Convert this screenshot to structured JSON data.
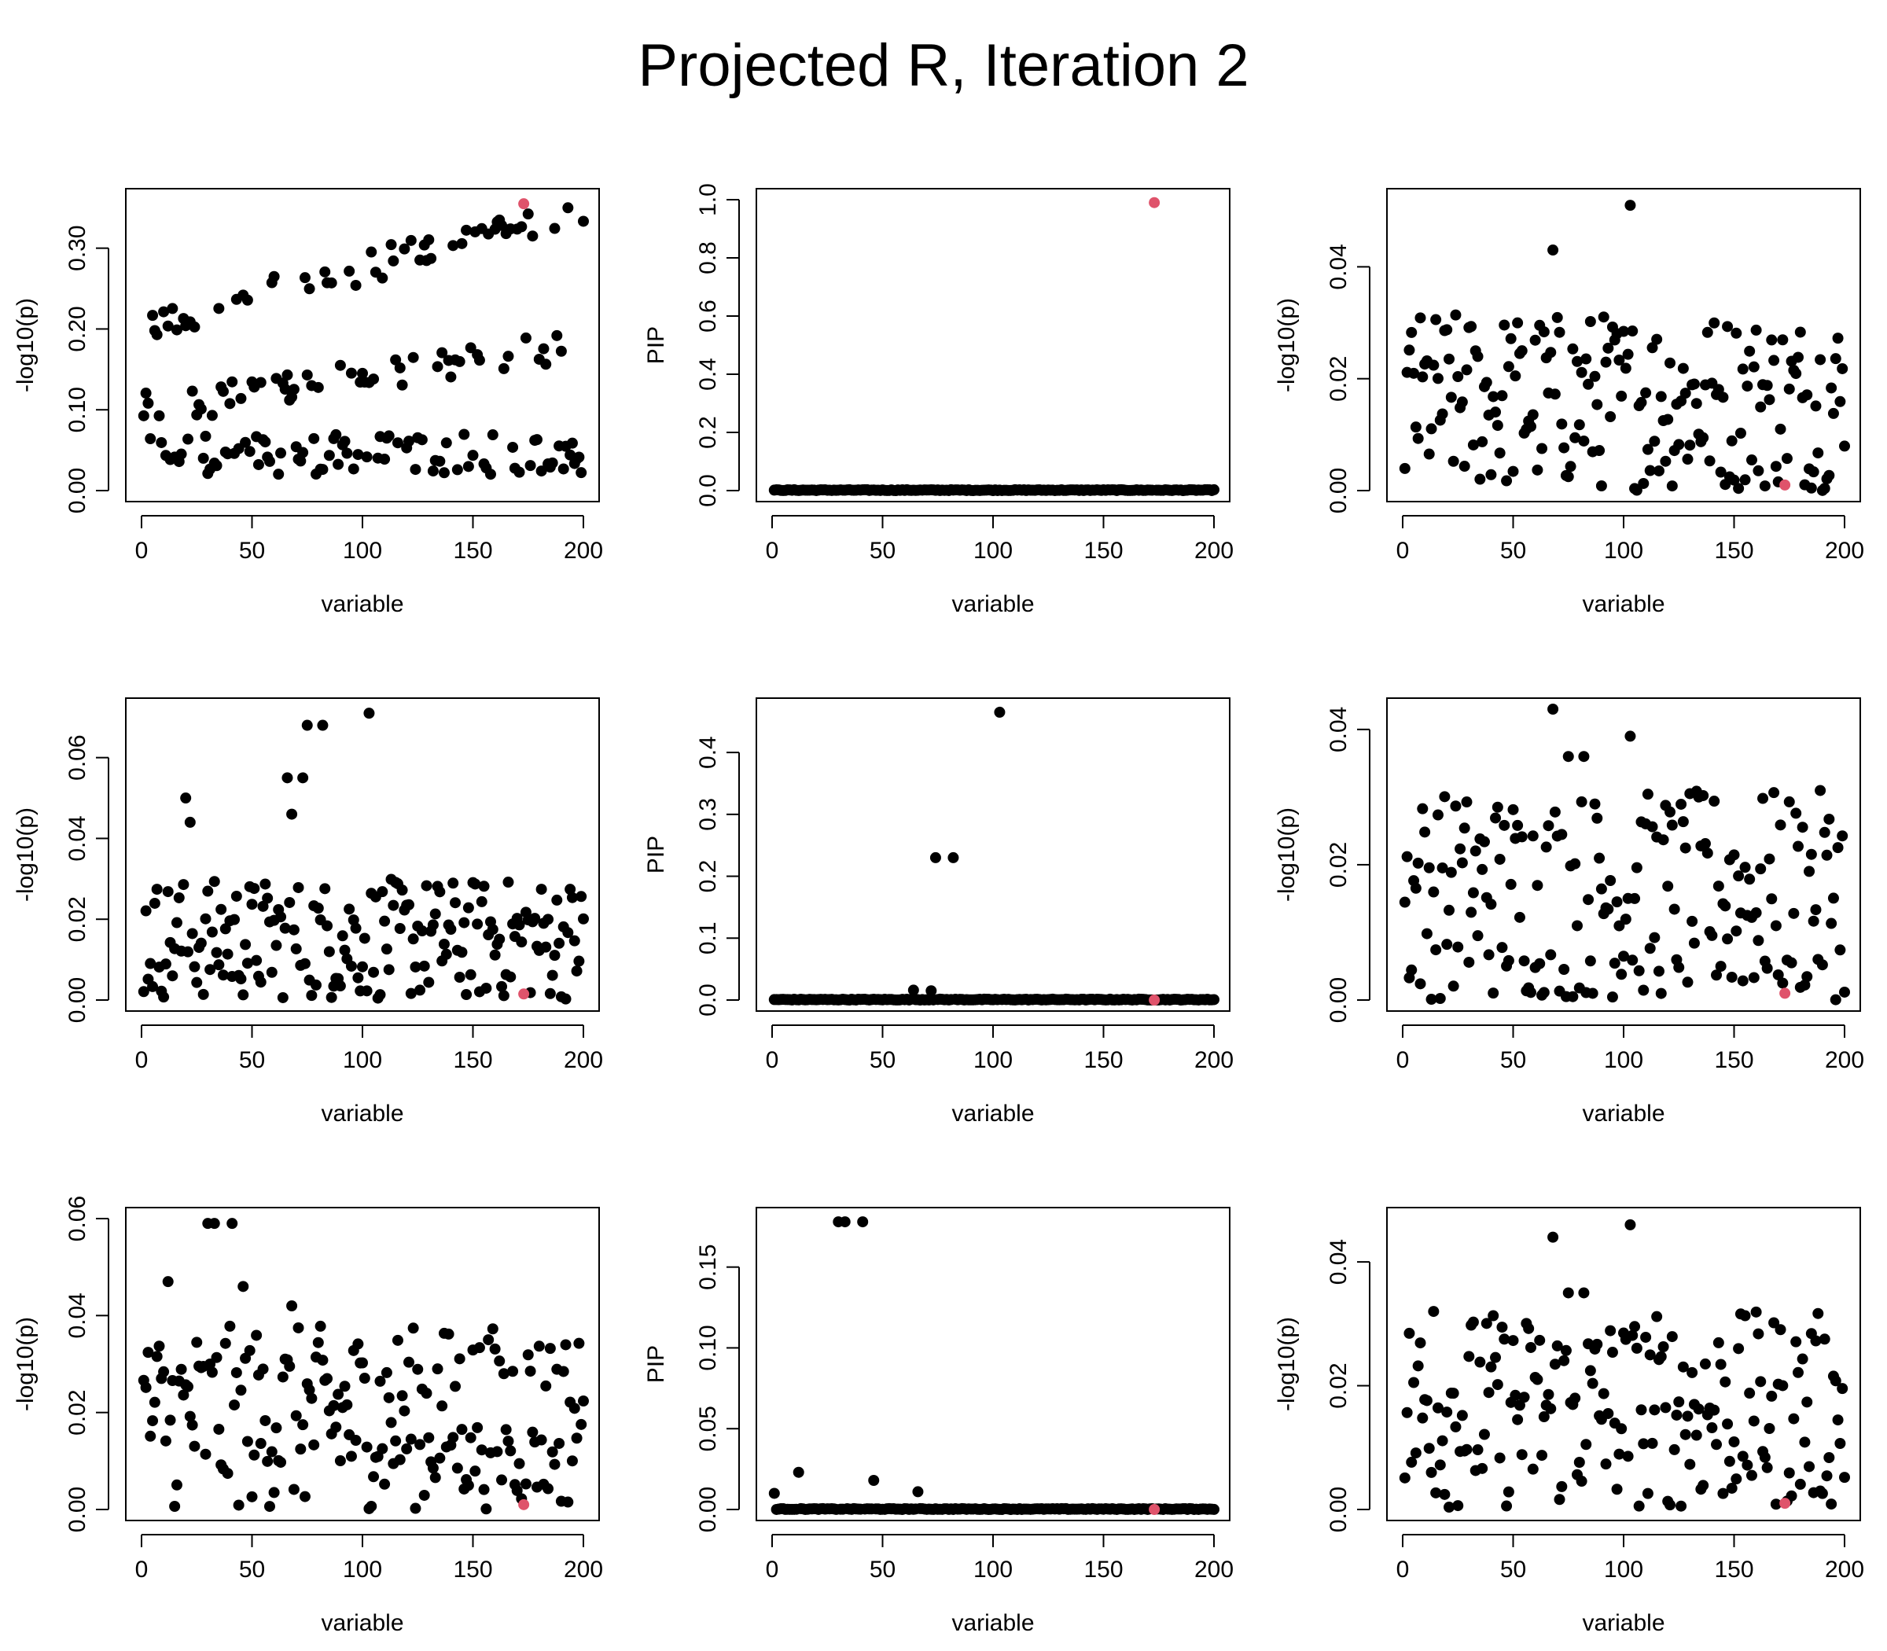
{
  "title": "Projected R, Iteration 2",
  "colors": {
    "point": "#000000",
    "highlight": "#DF536B",
    "axis": "#000000"
  },
  "chart_data": [
    {
      "type": "scatter",
      "panel": "row1-col1",
      "title": "",
      "xlabel": "variable",
      "ylabel": "-log10(p)",
      "xlim": [
        0,
        200
      ],
      "ylim": [
        0,
        0.36
      ],
      "xticks": [
        "0",
        "50",
        "100",
        "150",
        "200"
      ],
      "yticks": [
        "0.00",
        "0.10",
        "0.20",
        "0.30"
      ],
      "ytick_values": [
        0,
        0.1,
        0.2,
        0.3
      ],
      "series": [
        {
          "name": "variables",
          "shape": "trend",
          "lo": 0.01,
          "hi": 0.35,
          "noise": 0.12,
          "n": 200
        },
        {
          "name": "highlighted",
          "x": [
            173
          ],
          "y": [
            0.355
          ],
          "color": "#DF536B"
        }
      ]
    },
    {
      "type": "scatter",
      "panel": "row1-col2",
      "title": "",
      "xlabel": "variable",
      "ylabel": "PIP",
      "xlim": [
        0,
        200
      ],
      "ylim": [
        0,
        1.0
      ],
      "xticks": [
        "0",
        "50",
        "100",
        "150",
        "200"
      ],
      "yticks": [
        "0.0",
        "0.2",
        "0.4",
        "0.6",
        "0.8",
        "1.0"
      ],
      "ytick_values": [
        0,
        0.2,
        0.4,
        0.6,
        0.8,
        1.0
      ],
      "series": [
        {
          "name": "variables",
          "shape": "flat",
          "base": 0.0,
          "n": 200
        },
        {
          "name": "highlighted",
          "x": [
            173
          ],
          "y": [
            0.99
          ],
          "color": "#DF536B"
        }
      ]
    },
    {
      "type": "scatter",
      "panel": "row1-col3",
      "title": "",
      "xlabel": "variable",
      "ylabel": "-log10(p)",
      "xlim": [
        0,
        200
      ],
      "ylim": [
        0,
        0.052
      ],
      "xticks": [
        "0",
        "50",
        "100",
        "150",
        "200"
      ],
      "yticks": [
        "0.00",
        "0.02",
        "0.04"
      ],
      "ytick_values": [
        0,
        0.02,
        0.04
      ],
      "series": [
        {
          "name": "variables",
          "shape": "noise",
          "lo": 0.0,
          "hi": 0.032,
          "n": 200,
          "peaks": [
            [
              68,
              0.043
            ],
            [
              103,
              0.051
            ]
          ]
        },
        {
          "name": "highlighted",
          "x": [
            173
          ],
          "y": [
            0.001
          ],
          "color": "#DF536B"
        }
      ]
    },
    {
      "type": "scatter",
      "panel": "row2-col1",
      "title": "",
      "xlabel": "variable",
      "ylabel": "-log10(p)",
      "xlim": [
        0,
        200
      ],
      "ylim": [
        0,
        0.072
      ],
      "xticks": [
        "0",
        "50",
        "100",
        "150",
        "200"
      ],
      "yticks": [
        "0.00",
        "0.02",
        "0.04",
        "0.06"
      ],
      "ytick_values": [
        0,
        0.02,
        0.04,
        0.06
      ],
      "series": [
        {
          "name": "variables",
          "shape": "noise",
          "lo": 0.0,
          "hi": 0.03,
          "n": 200,
          "peaks": [
            [
              20,
              0.05
            ],
            [
              22,
              0.044
            ],
            [
              66,
              0.055
            ],
            [
              68,
              0.046
            ],
            [
              73,
              0.055
            ],
            [
              75,
              0.068
            ],
            [
              82,
              0.068
            ],
            [
              103,
              0.071
            ]
          ]
        },
        {
          "name": "highlighted",
          "x": [
            173
          ],
          "y": [
            0.0015
          ],
          "color": "#DF536B"
        }
      ]
    },
    {
      "type": "scatter",
      "panel": "row2-col2",
      "title": "",
      "xlabel": "variable",
      "ylabel": "PIP",
      "xlim": [
        0,
        200
      ],
      "ylim": [
        0,
        0.47
      ],
      "xticks": [
        "0",
        "50",
        "100",
        "150",
        "200"
      ],
      "yticks": [
        "0.0",
        "0.1",
        "0.2",
        "0.3",
        "0.4"
      ],
      "ytick_values": [
        0,
        0.1,
        0.2,
        0.3,
        0.4
      ],
      "series": [
        {
          "name": "variables",
          "shape": "flat",
          "base": 0.0,
          "n": 200,
          "peaks": [
            [
              64,
              0.016
            ],
            [
              72,
              0.015
            ],
            [
              74,
              0.23
            ],
            [
              82,
              0.23
            ],
            [
              103,
              0.465
            ]
          ]
        },
        {
          "name": "highlighted",
          "x": [
            173
          ],
          "y": [
            0.0
          ],
          "color": "#DF536B"
        }
      ]
    },
    {
      "type": "scatter",
      "panel": "row2-col3",
      "title": "",
      "xlabel": "variable",
      "ylabel": "-log10(p)",
      "xlim": [
        0,
        200
      ],
      "ylim": [
        0,
        0.043
      ],
      "xticks": [
        "0",
        "50",
        "100",
        "150",
        "200"
      ],
      "yticks": [
        "0.00",
        "0.02",
        "0.04"
      ],
      "ytick_values": [
        0,
        0.02,
        0.04
      ],
      "series": [
        {
          "name": "variables",
          "shape": "noise",
          "lo": 0.0,
          "hi": 0.031,
          "n": 200,
          "peaks": [
            [
              68,
              0.043
            ],
            [
              103,
              0.039
            ],
            [
              75,
              0.036
            ],
            [
              82,
              0.036
            ]
          ]
        },
        {
          "name": "highlighted",
          "x": [
            173
          ],
          "y": [
            0.001
          ],
          "color": "#DF536B"
        }
      ]
    },
    {
      "type": "scatter",
      "panel": "row3-col1",
      "title": "",
      "xlabel": "variable",
      "ylabel": "-log10(p)",
      "xlim": [
        0,
        200
      ],
      "ylim": [
        0,
        0.06
      ],
      "xticks": [
        "0",
        "50",
        "100",
        "150",
        "200"
      ],
      "yticks": [
        "0.00",
        "0.02",
        "0.04",
        "0.06"
      ],
      "ytick_values": [
        0,
        0.02,
        0.04,
        0.06
      ],
      "series": [
        {
          "name": "variables",
          "shape": "noise",
          "lo": 0.0,
          "hi": 0.038,
          "n": 200,
          "peaks": [
            [
              30,
              0.059
            ],
            [
              33,
              0.059
            ],
            [
              41,
              0.059
            ],
            [
              46,
              0.046
            ],
            [
              12,
              0.047
            ],
            [
              68,
              0.042
            ]
          ]
        },
        {
          "name": "highlighted",
          "x": [
            173
          ],
          "y": [
            0.001
          ],
          "color": "#DF536B"
        }
      ]
    },
    {
      "type": "scatter",
      "panel": "row3-col2",
      "title": "",
      "xlabel": "variable",
      "ylabel": "PIP",
      "xlim": [
        0,
        200
      ],
      "ylim": [
        0,
        0.18
      ],
      "xticks": [
        "0",
        "50",
        "100",
        "150",
        "200"
      ],
      "yticks": [
        "0.00",
        "0.05",
        "0.10",
        "0.15"
      ],
      "ytick_values": [
        0,
        0.05,
        0.1,
        0.15
      ],
      "series": [
        {
          "name": "variables",
          "shape": "flat",
          "base": 0.0,
          "n": 200,
          "peaks": [
            [
              1,
              0.01
            ],
            [
              12,
              0.023
            ],
            [
              30,
              0.178
            ],
            [
              33,
              0.178
            ],
            [
              41,
              0.178
            ],
            [
              46,
              0.018
            ],
            [
              66,
              0.011
            ]
          ]
        },
        {
          "name": "highlighted",
          "x": [
            173
          ],
          "y": [
            0.0
          ],
          "color": "#DF536B"
        }
      ]
    },
    {
      "type": "scatter",
      "panel": "row3-col3",
      "title": "",
      "xlabel": "variable",
      "ylabel": "-log10(p)",
      "xlim": [
        0,
        200
      ],
      "ylim": [
        0,
        0.047
      ],
      "xticks": [
        "0",
        "50",
        "100",
        "150",
        "200"
      ],
      "yticks": [
        "0.00",
        "0.02",
        "0.04"
      ],
      "ytick_values": [
        0,
        0.02,
        0.04
      ],
      "series": [
        {
          "name": "variables",
          "shape": "noise",
          "lo": 0.0,
          "hi": 0.032,
          "n": 200,
          "peaks": [
            [
              68,
              0.044
            ],
            [
              103,
              0.046
            ],
            [
              75,
              0.035
            ],
            [
              82,
              0.035
            ],
            [
              14,
              0.032
            ]
          ]
        },
        {
          "name": "highlighted",
          "x": [
            173
          ],
          "y": [
            0.001
          ],
          "color": "#DF536B"
        }
      ]
    }
  ]
}
